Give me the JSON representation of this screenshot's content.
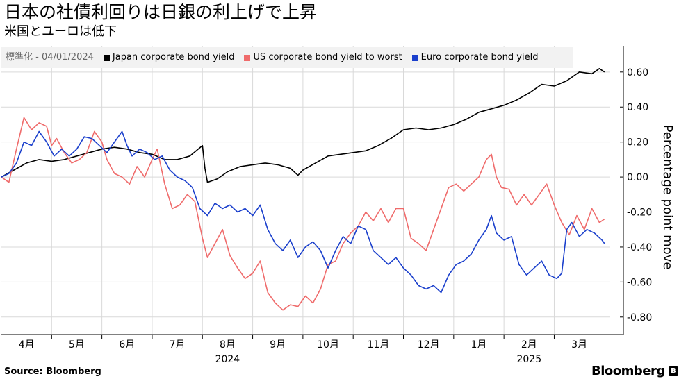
{
  "header": {
    "title": "日本の社債利回りは日銀の利上げで上昇",
    "subtitle": "米国とユーロは低下"
  },
  "legend": {
    "normalization": "標準化 - 04/01/2024"
  },
  "footer": {
    "source": "Source:  Bloomberg",
    "brand": "Bloomberg"
  },
  "colors": {
    "japan": "#000000",
    "us": "#ef6b6b",
    "euro": "#1a3fcc",
    "grid": "#d9d9d9",
    "legend_bg": "#f2f2f2"
  },
  "chart_data": {
    "type": "line",
    "title": "日本の社債利回りは日銀の利上げで上昇",
    "ylabel": "Percentage point move",
    "ylim": [
      -0.9,
      0.75
    ],
    "grid": true,
    "legend_position": "top",
    "yticks": [
      0.6,
      0.4,
      0.2,
      0.0,
      -0.2,
      -0.4,
      -0.6,
      -0.8
    ],
    "ytick_labels": [
      "0.60",
      "0.40",
      "0.20",
      "0.00",
      "-0.20",
      "-0.40",
      "-0.60",
      "-0.80"
    ],
    "month_labels": [
      {
        "label": "4月",
        "x": 0.5
      },
      {
        "label": "5月",
        "x": 1.5
      },
      {
        "label": "6月",
        "x": 2.5
      },
      {
        "label": "7月",
        "x": 3.5
      },
      {
        "label": "8月",
        "x": 4.5
      },
      {
        "label": "9月",
        "x": 5.5
      },
      {
        "label": "10月",
        "x": 6.5
      },
      {
        "label": "11月",
        "x": 7.5
      },
      {
        "label": "12月",
        "x": 8.5
      },
      {
        "label": "1月",
        "x": 9.5
      },
      {
        "label": "2月",
        "x": 10.5
      },
      {
        "label": "3月",
        "x": 11.5
      }
    ],
    "year_labels": [
      {
        "label": "2024",
        "x": 4.5
      },
      {
        "label": "2025",
        "x": 10.5
      }
    ],
    "xlim": [
      0,
      12.1
    ],
    "series": [
      {
        "name": "Japan corporate bond yield",
        "key": "japan",
        "points": [
          [
            0,
            0.0
          ],
          [
            0.25,
            0.04
          ],
          [
            0.5,
            0.08
          ],
          [
            0.75,
            0.1
          ],
          [
            1.0,
            0.09
          ],
          [
            1.25,
            0.1
          ],
          [
            1.5,
            0.12
          ],
          [
            1.75,
            0.14
          ],
          [
            2.0,
            0.16
          ],
          [
            2.25,
            0.17
          ],
          [
            2.5,
            0.16
          ],
          [
            2.75,
            0.14
          ],
          [
            3.0,
            0.13
          ],
          [
            3.25,
            0.1
          ],
          [
            3.5,
            0.1
          ],
          [
            3.75,
            0.12
          ],
          [
            4.0,
            0.18
          ],
          [
            4.05,
            0.05
          ],
          [
            4.1,
            -0.03
          ],
          [
            4.3,
            -0.01
          ],
          [
            4.5,
            0.03
          ],
          [
            4.75,
            0.06
          ],
          [
            5.0,
            0.07
          ],
          [
            5.25,
            0.08
          ],
          [
            5.5,
            0.07
          ],
          [
            5.75,
            0.05
          ],
          [
            5.9,
            0.01
          ],
          [
            6.0,
            0.04
          ],
          [
            6.25,
            0.08
          ],
          [
            6.5,
            0.12
          ],
          [
            6.75,
            0.13
          ],
          [
            7.0,
            0.14
          ],
          [
            7.25,
            0.15
          ],
          [
            7.5,
            0.18
          ],
          [
            7.75,
            0.22
          ],
          [
            8.0,
            0.27
          ],
          [
            8.25,
            0.28
          ],
          [
            8.5,
            0.27
          ],
          [
            8.75,
            0.28
          ],
          [
            9.0,
            0.3
          ],
          [
            9.25,
            0.33
          ],
          [
            9.5,
            0.37
          ],
          [
            9.75,
            0.39
          ],
          [
            10.0,
            0.41
          ],
          [
            10.25,
            0.44
          ],
          [
            10.5,
            0.48
          ],
          [
            10.75,
            0.53
          ],
          [
            11.0,
            0.52
          ],
          [
            11.25,
            0.55
          ],
          [
            11.5,
            0.6
          ],
          [
            11.75,
            0.59
          ],
          [
            11.9,
            0.62
          ],
          [
            12.0,
            0.6
          ]
        ]
      },
      {
        "name": "US corporate bond yield to worst",
        "key": "us",
        "points": [
          [
            0,
            0.0
          ],
          [
            0.15,
            -0.03
          ],
          [
            0.3,
            0.16
          ],
          [
            0.45,
            0.34
          ],
          [
            0.6,
            0.27
          ],
          [
            0.75,
            0.31
          ],
          [
            0.9,
            0.29
          ],
          [
            1.0,
            0.18
          ],
          [
            1.1,
            0.22
          ],
          [
            1.25,
            0.14
          ],
          [
            1.4,
            0.08
          ],
          [
            1.55,
            0.1
          ],
          [
            1.7,
            0.14
          ],
          [
            1.85,
            0.26
          ],
          [
            2.0,
            0.2
          ],
          [
            2.1,
            0.1
          ],
          [
            2.25,
            0.02
          ],
          [
            2.4,
            0.0
          ],
          [
            2.55,
            -0.04
          ],
          [
            2.7,
            0.06
          ],
          [
            2.85,
            0.0
          ],
          [
            3.0,
            0.1
          ],
          [
            3.1,
            0.16
          ],
          [
            3.25,
            -0.04
          ],
          [
            3.4,
            -0.18
          ],
          [
            3.55,
            -0.16
          ],
          [
            3.7,
            -0.1
          ],
          [
            3.85,
            -0.14
          ],
          [
            4.0,
            -0.35
          ],
          [
            4.1,
            -0.46
          ],
          [
            4.25,
            -0.38
          ],
          [
            4.4,
            -0.3
          ],
          [
            4.55,
            -0.45
          ],
          [
            4.7,
            -0.52
          ],
          [
            4.85,
            -0.58
          ],
          [
            5.0,
            -0.55
          ],
          [
            5.15,
            -0.48
          ],
          [
            5.3,
            -0.66
          ],
          [
            5.45,
            -0.72
          ],
          [
            5.6,
            -0.76
          ],
          [
            5.75,
            -0.73
          ],
          [
            5.9,
            -0.74
          ],
          [
            6.05,
            -0.68
          ],
          [
            6.2,
            -0.72
          ],
          [
            6.35,
            -0.64
          ],
          [
            6.5,
            -0.5
          ],
          [
            6.65,
            -0.48
          ],
          [
            6.8,
            -0.38
          ],
          [
            6.95,
            -0.32
          ],
          [
            7.1,
            -0.28
          ],
          [
            7.25,
            -0.2
          ],
          [
            7.4,
            -0.25
          ],
          [
            7.55,
            -0.18
          ],
          [
            7.7,
            -0.26
          ],
          [
            7.85,
            -0.18
          ],
          [
            8.0,
            -0.18
          ],
          [
            8.15,
            -0.35
          ],
          [
            8.3,
            -0.38
          ],
          [
            8.45,
            -0.42
          ],
          [
            8.6,
            -0.3
          ],
          [
            8.75,
            -0.18
          ],
          [
            8.9,
            -0.06
          ],
          [
            9.05,
            -0.04
          ],
          [
            9.2,
            -0.08
          ],
          [
            9.35,
            -0.04
          ],
          [
            9.5,
            0.0
          ],
          [
            9.65,
            0.1
          ],
          [
            9.75,
            0.13
          ],
          [
            9.85,
            0.0
          ],
          [
            9.95,
            -0.06
          ],
          [
            10.1,
            -0.07
          ],
          [
            10.25,
            -0.16
          ],
          [
            10.4,
            -0.1
          ],
          [
            10.55,
            -0.16
          ],
          [
            10.7,
            -0.1
          ],
          [
            10.85,
            -0.04
          ],
          [
            11.0,
            -0.16
          ],
          [
            11.15,
            -0.26
          ],
          [
            11.3,
            -0.33
          ],
          [
            11.45,
            -0.22
          ],
          [
            11.6,
            -0.3
          ],
          [
            11.75,
            -0.18
          ],
          [
            11.9,
            -0.26
          ],
          [
            12.0,
            -0.24
          ]
        ]
      },
      {
        "name": "Euro corporate bond yield",
        "key": "euro",
        "points": [
          [
            0,
            0.0
          ],
          [
            0.15,
            0.02
          ],
          [
            0.3,
            0.08
          ],
          [
            0.45,
            0.2
          ],
          [
            0.6,
            0.18
          ],
          [
            0.75,
            0.26
          ],
          [
            0.9,
            0.2
          ],
          [
            1.05,
            0.12
          ],
          [
            1.2,
            0.16
          ],
          [
            1.35,
            0.12
          ],
          [
            1.5,
            0.16
          ],
          [
            1.65,
            0.23
          ],
          [
            1.8,
            0.22
          ],
          [
            1.95,
            0.18
          ],
          [
            2.1,
            0.14
          ],
          [
            2.25,
            0.2
          ],
          [
            2.4,
            0.26
          ],
          [
            2.5,
            0.18
          ],
          [
            2.6,
            0.12
          ],
          [
            2.75,
            0.16
          ],
          [
            2.9,
            0.14
          ],
          [
            3.05,
            0.1
          ],
          [
            3.2,
            0.12
          ],
          [
            3.35,
            0.04
          ],
          [
            3.5,
            0.0
          ],
          [
            3.65,
            -0.02
          ],
          [
            3.8,
            -0.06
          ],
          [
            3.95,
            -0.18
          ],
          [
            4.1,
            -0.22
          ],
          [
            4.25,
            -0.15
          ],
          [
            4.4,
            -0.18
          ],
          [
            4.55,
            -0.16
          ],
          [
            4.7,
            -0.2
          ],
          [
            4.85,
            -0.18
          ],
          [
            5.0,
            -0.22
          ],
          [
            5.15,
            -0.16
          ],
          [
            5.3,
            -0.3
          ],
          [
            5.45,
            -0.38
          ],
          [
            5.6,
            -0.42
          ],
          [
            5.75,
            -0.36
          ],
          [
            5.9,
            -0.46
          ],
          [
            6.05,
            -0.4
          ],
          [
            6.2,
            -0.37
          ],
          [
            6.35,
            -0.42
          ],
          [
            6.5,
            -0.52
          ],
          [
            6.65,
            -0.42
          ],
          [
            6.8,
            -0.34
          ],
          [
            6.95,
            -0.38
          ],
          [
            7.1,
            -0.28
          ],
          [
            7.25,
            -0.3
          ],
          [
            7.4,
            -0.42
          ],
          [
            7.55,
            -0.46
          ],
          [
            7.7,
            -0.5
          ],
          [
            7.85,
            -0.46
          ],
          [
            8.0,
            -0.52
          ],
          [
            8.15,
            -0.56
          ],
          [
            8.3,
            -0.62
          ],
          [
            8.45,
            -0.64
          ],
          [
            8.6,
            -0.62
          ],
          [
            8.75,
            -0.66
          ],
          [
            8.9,
            -0.56
          ],
          [
            9.05,
            -0.5
          ],
          [
            9.2,
            -0.48
          ],
          [
            9.35,
            -0.44
          ],
          [
            9.5,
            -0.36
          ],
          [
            9.65,
            -0.3
          ],
          [
            9.75,
            -0.22
          ],
          [
            9.85,
            -0.32
          ],
          [
            10.0,
            -0.36
          ],
          [
            10.15,
            -0.34
          ],
          [
            10.3,
            -0.5
          ],
          [
            10.45,
            -0.56
          ],
          [
            10.6,
            -0.52
          ],
          [
            10.75,
            -0.48
          ],
          [
            10.9,
            -0.56
          ],
          [
            11.05,
            -0.58
          ],
          [
            11.15,
            -0.55
          ],
          [
            11.25,
            -0.3
          ],
          [
            11.35,
            -0.26
          ],
          [
            11.5,
            -0.34
          ],
          [
            11.65,
            -0.3
          ],
          [
            11.8,
            -0.32
          ],
          [
            11.95,
            -0.36
          ],
          [
            12.0,
            -0.38
          ]
        ]
      }
    ]
  }
}
